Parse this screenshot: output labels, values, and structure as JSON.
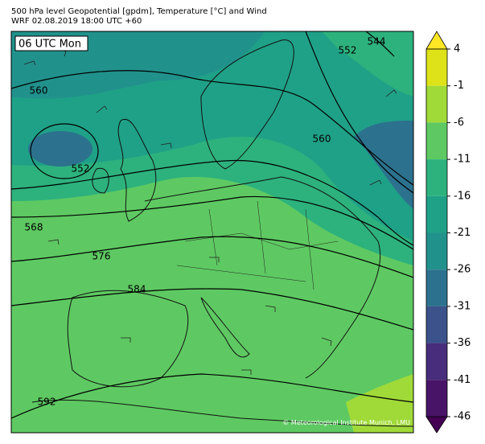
{
  "header": {
    "line1": "500 hPa level Geopotential [gpdm], Temperature [°C] and Wind",
    "line2": "WRF 02.08.2019 18:00 UTC +60"
  },
  "map": {
    "time_label": "06 UTC Mon",
    "contour_labels": [
      "560",
      "552",
      "568",
      "576",
      "584",
      "592",
      "544",
      "552",
      "560"
    ],
    "copyright": "© Meteorological Institute Munich, LMU"
  },
  "colorbar": {
    "ticks": [
      4,
      -1,
      -6,
      -11,
      -16,
      -21,
      -26,
      -31,
      -36,
      -41,
      -46
    ],
    "colors": [
      "#dde318",
      "#a0da39",
      "#5ec962",
      "#2db27d",
      "#1fa187",
      "#21918c",
      "#2c728e",
      "#3b528b",
      "#472d7b",
      "#481467"
    ],
    "top_color": "#fde725",
    "bottom_color": "#440154"
  }
}
